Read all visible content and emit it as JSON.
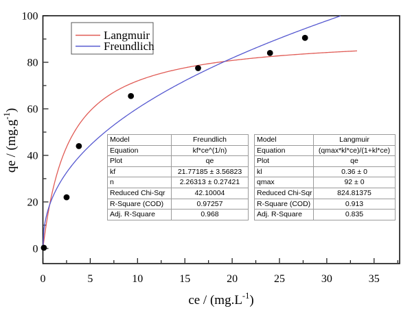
{
  "figure": {
    "xlabel": {
      "pre": "ce / (mg.L",
      "sup": "-1",
      "post": ")"
    },
    "ylabel": {
      "pre": "qe / (mg.g",
      "sup": "-1",
      "post": ")"
    }
  },
  "chart_data": {
    "type": "scatter",
    "title": "",
    "xlabel": "ce / (mg.L-1)",
    "ylabel": "qe / (mg.g-1)",
    "x_axis": {
      "min": 0,
      "max": 37.7,
      "major_ticks": [
        0,
        5,
        10,
        15,
        20,
        25,
        30,
        35
      ],
      "minor_step": 2.5
    },
    "y_axis": {
      "min": -6.5,
      "max": 100,
      "major_ticks": [
        0,
        20,
        40,
        60,
        80,
        100
      ],
      "minor_step": 10
    },
    "grid": false,
    "legend_position": "top-left-inside",
    "scatter_points": [
      [
        0.1,
        0.3
      ],
      [
        2.5,
        22
      ],
      [
        3.8,
        44
      ],
      [
        9.3,
        65.5
      ],
      [
        16.4,
        77.5
      ],
      [
        24,
        84
      ],
      [
        27.7,
        90.5
      ]
    ],
    "series": [
      {
        "name": "Langmuir",
        "color": "#e05a54",
        "equation": "(qmax*kl*ce)/(1+kl*ce)",
        "params": {
          "qmax": 92,
          "kl": 0.36
        },
        "x_range": [
          0.0,
          33.2
        ]
      },
      {
        "name": "Freundlich",
        "color": "#5558d0",
        "equation": "kf*ce^(1/n)",
        "params": {
          "kf": 21.77185,
          "n": 2.26313
        },
        "x_range": [
          0.0,
          31.45
        ]
      }
    ],
    "legend": {
      "items": [
        {
          "label": "Langmuir",
          "color": "#e05a54"
        },
        {
          "label": "Freundlich",
          "color": "#5558d0"
        }
      ]
    },
    "point_color": "#000000"
  },
  "tables": {
    "freundlich": {
      "rows": [
        [
          "Model",
          "Freundlich"
        ],
        [
          "Equation",
          "kf*ce^(1/n)"
        ],
        [
          "Plot",
          "qe"
        ],
        [
          "kf",
          "21.77185 ± 3.56823"
        ],
        [
          "n",
          "2.26313 ± 0.27421"
        ],
        [
          "Reduced Chi-Sqr",
          "42.10004"
        ],
        [
          "R-Square (COD)",
          "0.97257"
        ],
        [
          "Adj. R-Square",
          "0.968"
        ]
      ]
    },
    "langmuir": {
      "rows": [
        [
          "Model",
          "Langmuir"
        ],
        [
          "Equation",
          "(qmax*kl*ce)/(1+kl*ce)"
        ],
        [
          "Plot",
          "qe"
        ],
        [
          "kl",
          "0.36 ± 0"
        ],
        [
          "qmax",
          "92 ± 0"
        ],
        [
          "Reduced Chi-Sqr",
          "824.81375"
        ],
        [
          "R-Square (COD)",
          "0.913"
        ],
        [
          "Adj. R-Square",
          "0.835"
        ]
      ]
    }
  }
}
